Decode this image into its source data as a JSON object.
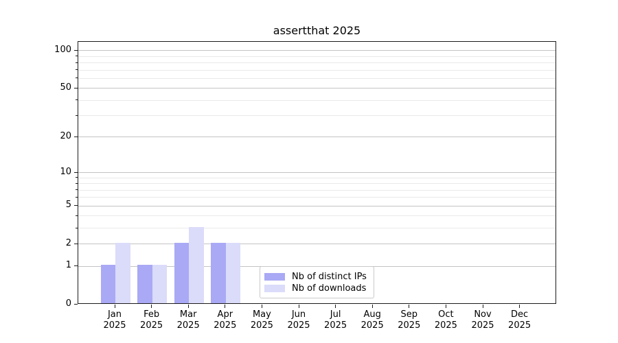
{
  "chart_data": {
    "type": "bar",
    "title": "assertthat 2025",
    "categories": [
      "Jan",
      "Feb",
      "Mar",
      "Apr",
      "May",
      "Jun",
      "Jul",
      "Aug",
      "Sep",
      "Oct",
      "Nov",
      "Dec"
    ],
    "year_label": "2025",
    "series": [
      {
        "name": "Nb of distinct IPs",
        "color": "#a9a9f5",
        "values": [
          1,
          1,
          2,
          2,
          0,
          0,
          0,
          0,
          0,
          0,
          0,
          0
        ]
      },
      {
        "name": "Nb of downloads",
        "color": "#dbdbfa",
        "values": [
          2,
          1,
          3,
          2,
          0,
          0,
          0,
          0,
          0,
          0,
          0,
          0
        ]
      }
    ],
    "xlabel": "",
    "ylabel": "",
    "yscale": "log1p",
    "ylim": [
      0,
      117.6
    ],
    "yticks": [
      0,
      1,
      2,
      5,
      10,
      20,
      50,
      100
    ],
    "yticks_minor": [
      3,
      4,
      6,
      7,
      8,
      9,
      30,
      40,
      60,
      70,
      80,
      90
    ],
    "grid": true,
    "legend_position": "lower center",
    "colors": {
      "major_grid": "#c3c3c3",
      "minor_grid": "#e9e9e9",
      "spine": "#1a1a1a",
      "background": "#ffffff"
    }
  }
}
